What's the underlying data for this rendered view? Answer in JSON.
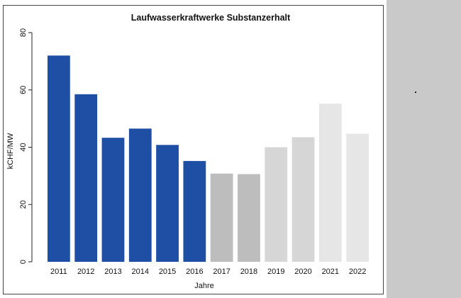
{
  "chart_data": {
    "type": "bar",
    "title": "Laufwasserkraftwerke Substanzerhalt",
    "xlabel": "Jahre",
    "ylabel": "kCHF/MW",
    "ylim": [
      0,
      80
    ],
    "yticks": [
      0,
      20,
      40,
      60,
      80
    ],
    "categories": [
      "2011",
      "2012",
      "2013",
      "2014",
      "2015",
      "2016",
      "2017",
      "2018",
      "2019",
      "2020",
      "2021",
      "2022"
    ],
    "values": [
      72,
      58.5,
      43.3,
      46.5,
      40.8,
      35.2,
      30.8,
      30.6,
      40.0,
      43.5,
      55.2,
      44.7
    ],
    "colors": [
      "#1f4fa5",
      "#1f4fa5",
      "#1f4fa5",
      "#1f4fa5",
      "#1f4fa5",
      "#1f4fa5",
      "#bdbdbd",
      "#bdbdbd",
      "#d6d6d6",
      "#d6d6d6",
      "#e6e6e6",
      "#e6e6e6"
    ],
    "grid": false,
    "legend": "none"
  }
}
